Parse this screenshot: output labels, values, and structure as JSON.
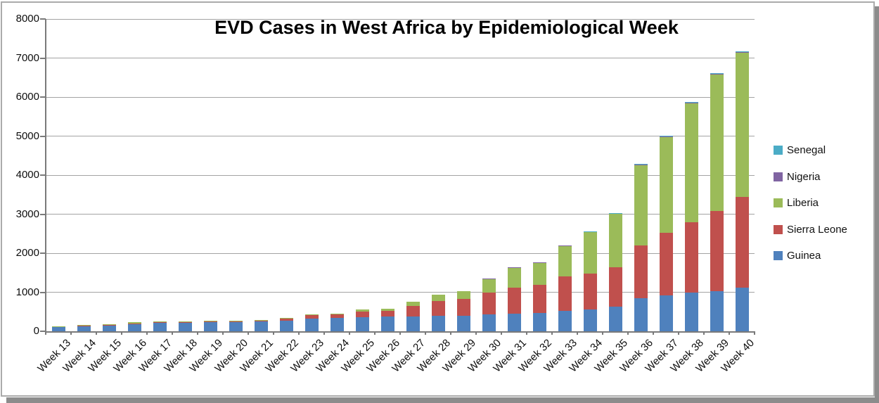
{
  "window": {
    "background": "#ffffff",
    "frame_border_color": "#ababab",
    "shadow_color": "#8c8c8c"
  },
  "chart_data": {
    "type": "bar",
    "stacked": true,
    "title": "EVD Cases in West Africa by Epidemiological Week",
    "xlabel": "",
    "ylabel": "",
    "ylim": [
      0,
      8000
    ],
    "ytick_step": 1000,
    "ytick_labels": [
      "0",
      "1000",
      "2000",
      "3000",
      "4000",
      "5000",
      "6000",
      "7000",
      "8000"
    ],
    "grid": true,
    "categories": [
      "Week 13",
      "Week 14",
      "Week 15",
      "Week 16",
      "Week 17",
      "Week 18",
      "Week 19",
      "Week 20",
      "Week 21",
      "Week 22",
      "Week 23",
      "Week 24",
      "Week 25",
      "Week 26",
      "Week 27",
      "Week 28",
      "Week 29",
      "Week 30",
      "Week 31",
      "Week 32",
      "Week 33",
      "Week 34",
      "Week 35",
      "Week 36",
      "Week 37",
      "Week 38",
      "Week 39",
      "Week 40"
    ],
    "stack_order_bottom_to_top": [
      "Guinea",
      "Sierra Leone",
      "Liberia",
      "Nigeria",
      "Senegal"
    ],
    "series": [
      {
        "name": "Guinea",
        "color": "#4F81BD",
        "values": [
          112,
          143,
          153,
          190,
          218,
          231,
          240,
          248,
          255,
          266,
          328,
          346,
          356,
          374,
          380,
          390,
          400,
          430,
          446,
          465,
          520,
          550,
          626,
          855,
          910,
          986,
          1035,
          1120
        ]
      },
      {
        "name": "Sierra Leone",
        "color": "#C0504D",
        "values": [
          0,
          2,
          3,
          12,
          10,
          10,
          10,
          10,
          11,
          61,
          85,
          85,
          150,
          152,
          270,
          388,
          437,
          560,
          680,
          730,
          880,
          935,
          1020,
          1350,
          1620,
          1813,
          2040,
          2327
        ]
      },
      {
        "name": "Liberia",
        "color": "#9BBB59",
        "values": [
          8,
          17,
          19,
          26,
          27,
          14,
          12,
          13,
          18,
          19,
          23,
          24,
          58,
          58,
          108,
          167,
          185,
          340,
          495,
          545,
          780,
          1055,
          1360,
          2055,
          2437,
          3043,
          3495,
          3685
        ]
      },
      {
        "name": "Nigeria",
        "color": "#8064A2",
        "values": [
          0,
          0,
          0,
          0,
          0,
          0,
          0,
          0,
          0,
          0,
          0,
          0,
          0,
          0,
          0,
          0,
          0,
          14,
          16,
          17,
          19,
          20,
          21,
          21,
          21,
          21,
          21,
          21
        ]
      },
      {
        "name": "Senegal",
        "color": "#4BACC6",
        "values": [
          0,
          0,
          0,
          0,
          0,
          0,
          0,
          0,
          0,
          0,
          0,
          0,
          0,
          0,
          0,
          0,
          0,
          0,
          0,
          0,
          0,
          3,
          5,
          15,
          17,
          17,
          18,
          18
        ]
      }
    ],
    "legend": {
      "position": "right",
      "entries_top_to_bottom": [
        "Senegal",
        "Nigeria",
        "Liberia",
        "Sierra Leone",
        "Guinea"
      ]
    }
  }
}
